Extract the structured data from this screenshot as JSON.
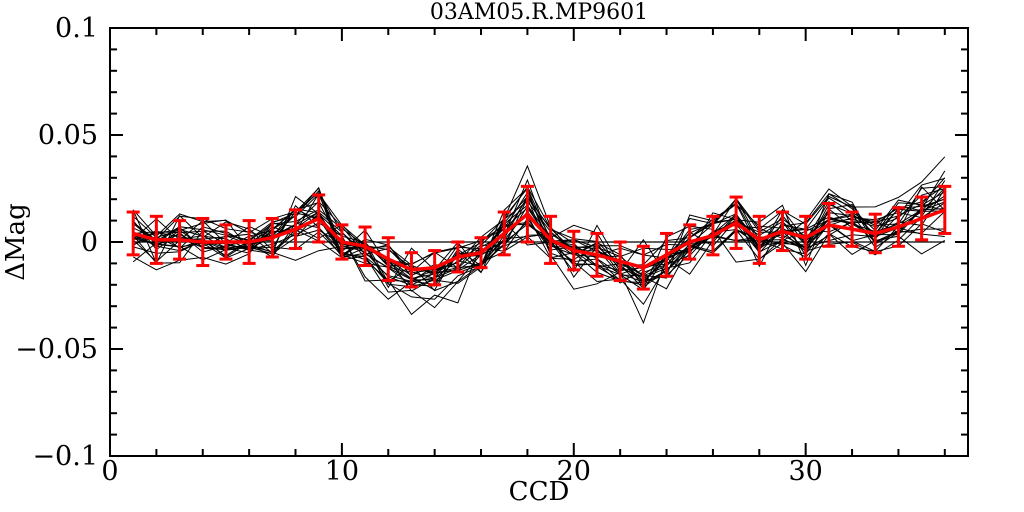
{
  "page": {
    "background": "#ffffff"
  },
  "chart_data": {
    "type": "line",
    "title": "03AM05.R.MP9601",
    "xlabel": "CCD",
    "ylabel": "ΔMag",
    "xlim": [
      0,
      37
    ],
    "ylim": [
      -0.1,
      0.1
    ],
    "grid": false,
    "frame_color": "#000000",
    "background": "#ffffff",
    "x_major_ticks": [
      0,
      10,
      20,
      30
    ],
    "x_major_tick_labels": [
      "0",
      "10",
      "20",
      "30"
    ],
    "x_minor_step": 2,
    "y_major_ticks": [
      -0.1,
      -0.05,
      0,
      0.05,
      0.1
    ],
    "y_major_tick_labels": [
      "−0.1",
      "−0.05",
      "0",
      "0.05",
      "0.1"
    ],
    "y_minor_step": 0.01,
    "x": [
      1,
      2,
      3,
      4,
      5,
      6,
      7,
      8,
      9,
      10,
      11,
      12,
      13,
      14,
      15,
      16,
      17,
      18,
      19,
      20,
      21,
      22,
      23,
      24,
      25,
      26,
      27,
      28,
      29,
      30,
      31,
      32,
      33,
      34,
      35,
      36
    ],
    "zero_reference_line": {
      "y": 0,
      "x_start": 1,
      "x_end": 36,
      "color": "#000000"
    },
    "series": [
      {
        "name": "per-star residual curves (unlabeled ensemble)",
        "render": "procedural-ensemble",
        "color": "#000000",
        "line_width": 1,
        "count": 25,
        "seed": 20,
        "gain_range": [
          0.5,
          2.0
        ],
        "offset_range": [
          -0.004,
          0.004
        ],
        "noise_amplitude": 0.006,
        "outlier_fraction": 0.2,
        "outlier_amplitude": 0.013,
        "end_spike_probability": 0.25,
        "end_spike_amplitude": 0.03,
        "value_clamp": [
          -0.04,
          0.046
        ]
      },
      {
        "name": "mean ΔMag per CCD with error bars",
        "render": "line-errorbars",
        "color": "#ff0000",
        "line_width": 3,
        "values": [
          0.004,
          0.001,
          0.001,
          0.0,
          0.0,
          0.0,
          0.002,
          0.006,
          0.011,
          0.0,
          -0.002,
          -0.008,
          -0.013,
          -0.012,
          -0.007,
          -0.005,
          0.004,
          0.013,
          0.001,
          -0.004,
          -0.006,
          -0.009,
          -0.012,
          -0.006,
          0.0,
          0.003,
          0.009,
          0.001,
          0.005,
          0.002,
          0.008,
          0.006,
          0.004,
          0.007,
          0.011,
          0.015
        ],
        "errors": [
          0.01,
          0.011,
          0.009,
          0.011,
          0.008,
          0.01,
          0.009,
          0.009,
          0.011,
          0.008,
          0.009,
          0.01,
          0.008,
          0.008,
          0.007,
          0.007,
          0.01,
          0.013,
          0.011,
          0.009,
          0.01,
          0.009,
          0.01,
          0.01,
          0.008,
          0.009,
          0.012,
          0.011,
          0.009,
          0.01,
          0.01,
          0.008,
          0.009,
          0.009,
          0.01,
          0.011
        ]
      }
    ]
  }
}
